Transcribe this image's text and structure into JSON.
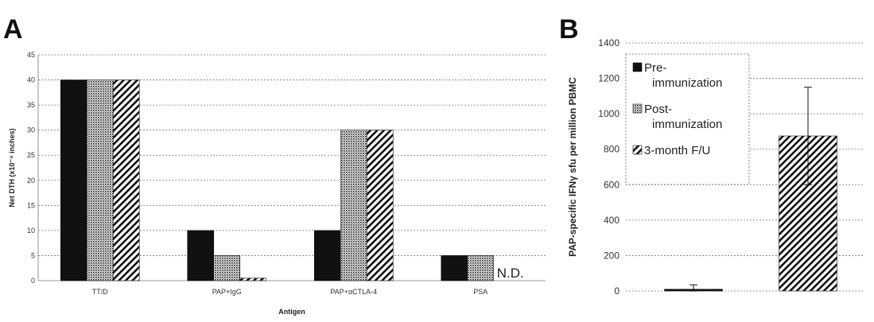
{
  "panels": {
    "a_label": "A",
    "b_label": "B"
  },
  "chart_data": [
    {
      "type": "bar",
      "ylabel": "Net DTH (x10⁻⁴ inches)",
      "xlabel": "Antigen",
      "ylim": [
        0,
        45
      ],
      "yticks": [
        0,
        5,
        10,
        15,
        20,
        25,
        30,
        35,
        40,
        45
      ],
      "grid": true,
      "categories": [
        "TT/D",
        "PAP+IgG",
        "PAP+αCTLA-4",
        "PSA"
      ],
      "series": [
        {
          "key": "pre",
          "values": [
            40,
            10,
            10,
            5
          ],
          "pattern": "solid"
        },
        {
          "key": "post",
          "values": [
            40,
            5,
            30,
            5
          ],
          "pattern": "dots"
        },
        {
          "key": "fu",
          "values": [
            40,
            0.5,
            30,
            null
          ],
          "pattern": "hatch"
        }
      ],
      "annotations": [
        {
          "text": "N.D.",
          "category": "PSA",
          "series": "fu"
        }
      ]
    },
    {
      "type": "bar",
      "ylabel": "PAP-specific IFNγ sfu per million PBMC",
      "ylim": [
        0,
        1400
      ],
      "yticks": [
        0,
        200,
        400,
        600,
        800,
        1000,
        1200,
        1400
      ],
      "grid": true,
      "legend": {
        "placement": "top-left",
        "entries": [
          {
            "lines": [
              "Pre-",
              "immunization"
            ],
            "pattern": "solid"
          },
          {
            "lines": [
              "Post-",
              "immunization"
            ],
            "pattern": "dots"
          },
          {
            "lines": [
              "3-month F/U"
            ],
            "pattern": "hatch"
          }
        ]
      },
      "bars": [
        {
          "pattern": "solid",
          "value": 10,
          "error": 25
        },
        {
          "pattern": "hatch",
          "value": 875,
          "error": 275
        }
      ]
    }
  ]
}
